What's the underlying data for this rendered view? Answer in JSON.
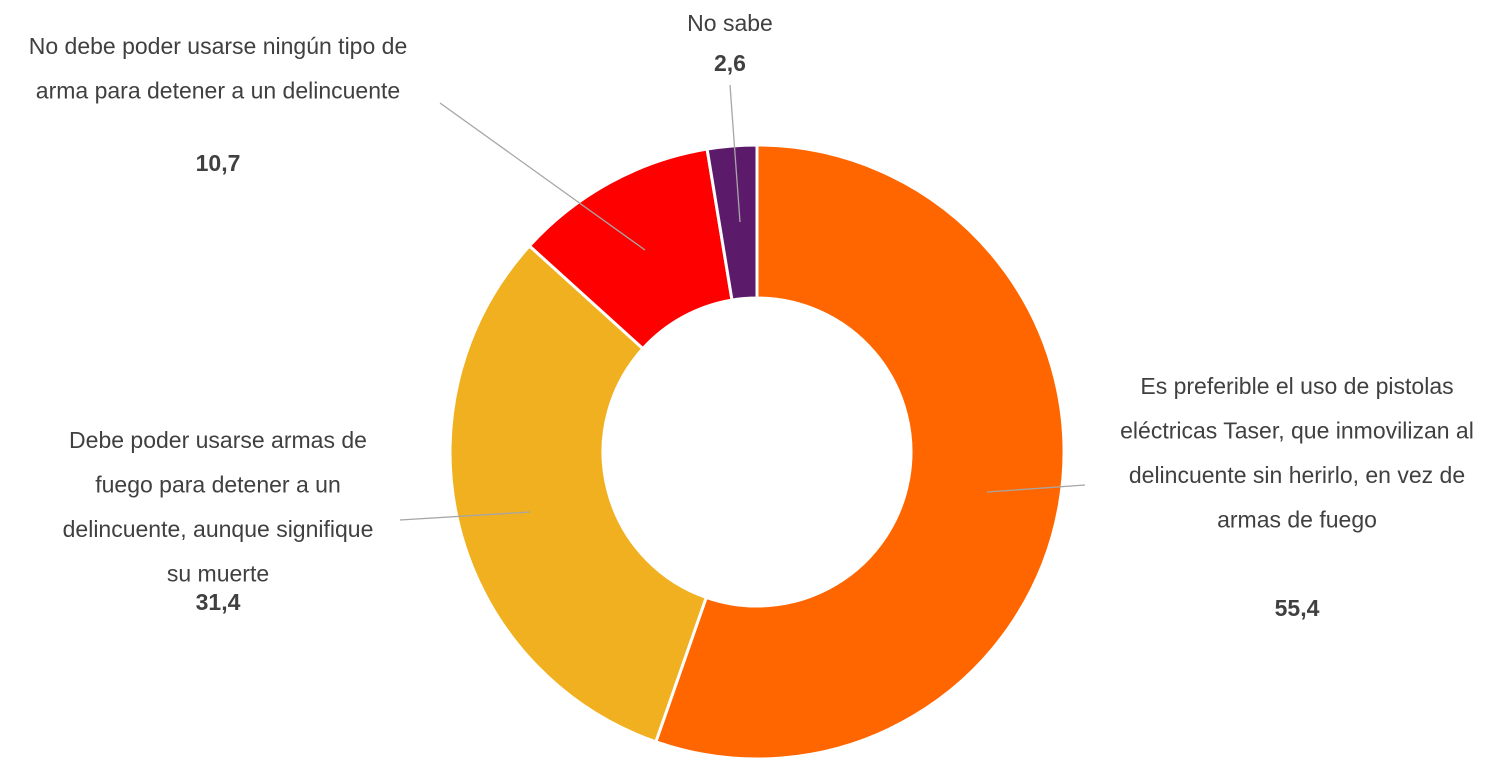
{
  "chart_data": {
    "type": "donut",
    "categories": [
      "Es preferible el uso de pistolas eléctricas Taser, que inmovilizan al delincuente sin herirlo, en vez de armas de fuego",
      "Debe poder usarse armas de fuego para detener a un delincuente, aunque signifique su muerte",
      "No debe poder usarse ningún tipo de arma para detener a un delincuente",
      "No sabe"
    ],
    "values": [
      55.4,
      31.4,
      10.7,
      2.6
    ],
    "value_labels": [
      "55,4",
      "31,4",
      "10,7",
      "2,6"
    ],
    "colors": [
      "#ff6600",
      "#f0b020",
      "#ff0000",
      "#5c1a6b"
    ]
  }
}
